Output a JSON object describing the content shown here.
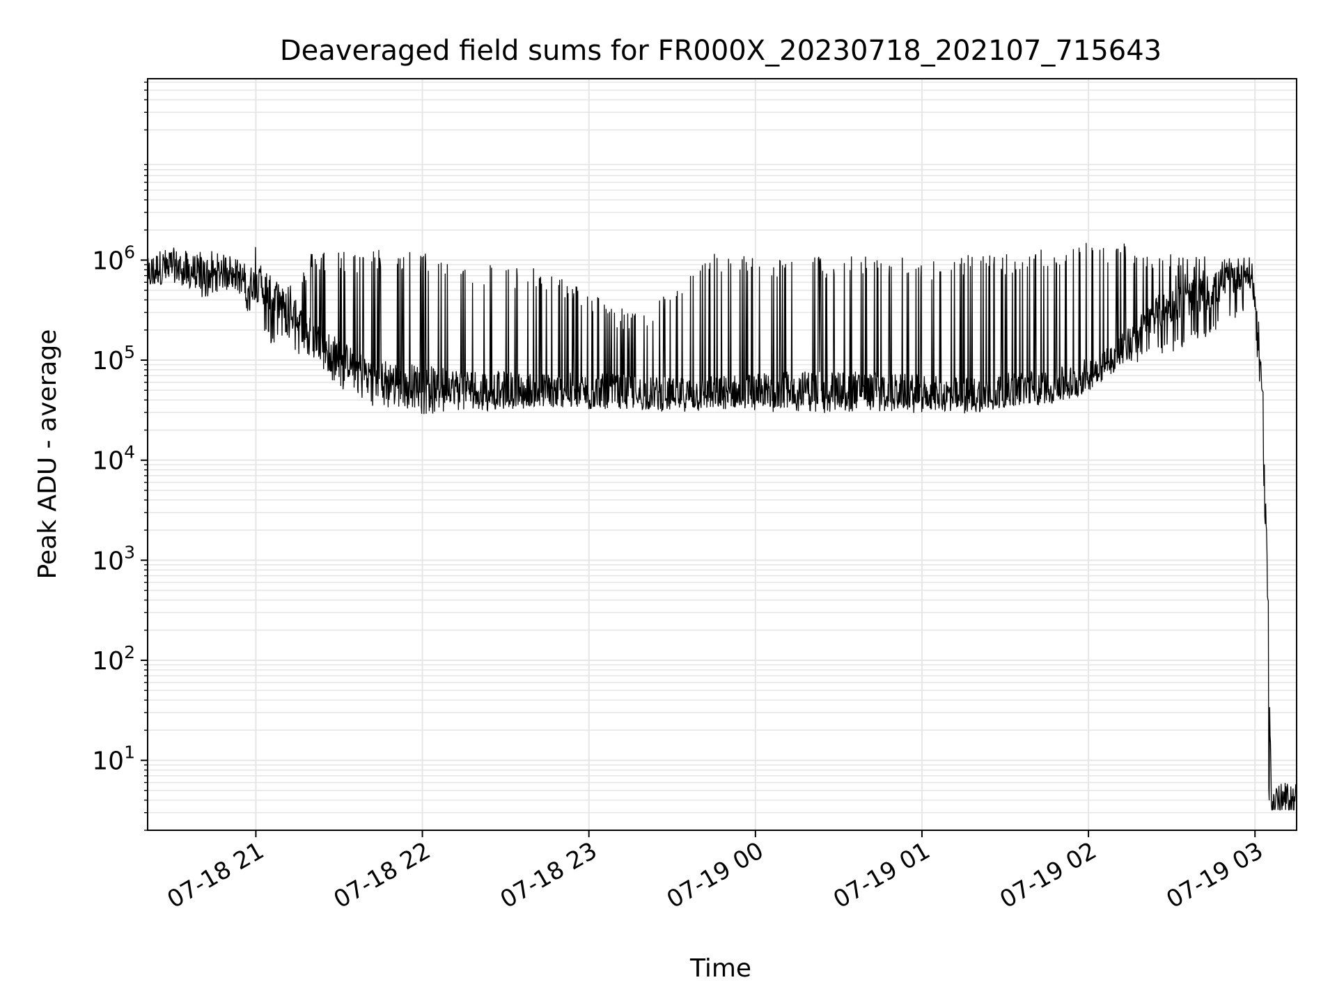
{
  "chart_data": {
    "type": "line",
    "title": "Deaveraged field sums for FR000X_20230718_202107_715643",
    "xlabel": "Time",
    "ylabel": "Peak ADU - average",
    "yscale": "log",
    "ylim": [
      2,
      65000000
    ],
    "xlim": [
      "2023-07-18 20:21",
      "2023-07-19 03:15"
    ],
    "grid": true,
    "grid_minor": true,
    "line_color": "#000000",
    "grid_color": "#e6e6e6",
    "xticks": [
      {
        "t": "2023-07-18 21:00",
        "label": "07-18 21"
      },
      {
        "t": "2023-07-18 22:00",
        "label": "07-18 22"
      },
      {
        "t": "2023-07-18 23:00",
        "label": "07-18 23"
      },
      {
        "t": "2023-07-19 00:00",
        "label": "07-19 00"
      },
      {
        "t": "2023-07-19 01:00",
        "label": "07-19 01"
      },
      {
        "t": "2023-07-19 02:00",
        "label": "07-19 02"
      },
      {
        "t": "2023-07-19 03:00",
        "label": "07-19 03"
      }
    ],
    "yticks": [
      {
        "value": 10,
        "base": "10",
        "exp": "1"
      },
      {
        "value": 100,
        "base": "10",
        "exp": "2"
      },
      {
        "value": 1000,
        "base": "10",
        "exp": "3"
      },
      {
        "value": 10000,
        "base": "10",
        "exp": "4"
      },
      {
        "value": 100000,
        "base": "10",
        "exp": "5"
      },
      {
        "value": 1000000,
        "base": "10",
        "exp": "6"
      }
    ],
    "series": [
      {
        "values_description_note": "",
        "x": [
          "2023-07-18 20:21",
          "2023-07-18 20:25",
          "2023-07-18 20:30",
          "2023-07-18 20:35",
          "2023-07-18 20:40",
          "2023-07-18 20:45",
          "2023-07-18 20:50",
          "2023-07-18 20:55",
          "2023-07-18 20:58",
          "2023-07-18 21:02",
          "2023-07-18 21:06",
          "2023-07-18 21:10",
          "2023-07-18 21:15",
          "2023-07-18 21:20",
          "2023-07-18 21:25",
          "2023-07-18 21:30",
          "2023-07-18 21:35",
          "2023-07-18 21:40",
          "2023-07-18 21:50",
          "2023-07-18 22:00",
          "2023-07-18 22:15",
          "2023-07-18 22:30",
          "2023-07-18 22:45",
          "2023-07-18 23:00",
          "2023-07-18 23:15",
          "2023-07-18 23:30",
          "2023-07-18 23:45",
          "2023-07-19 00:00",
          "2023-07-19 00:15",
          "2023-07-19 00:30",
          "2023-07-19 00:45",
          "2023-07-19 01:00",
          "2023-07-19 01:10",
          "2023-07-19 01:20",
          "2023-07-19 01:30",
          "2023-07-19 01:45",
          "2023-07-19 01:55",
          "2023-07-19 02:05",
          "2023-07-19 02:15",
          "2023-07-19 02:25",
          "2023-07-19 02:35",
          "2023-07-19 02:45",
          "2023-07-19 02:55",
          "2023-07-19 02:59",
          "2023-07-19 03:01",
          "2023-07-19 03:02",
          "2023-07-19 03:03",
          "2023-07-19 03:04",
          "2023-07-19 03:05",
          "2023-07-19 03:06",
          "2023-07-19 03:07",
          "2023-07-19 03:15"
        ],
        "y": [
          700000,
          850000,
          900000,
          800000,
          750000,
          700000,
          800000,
          650000,
          600000,
          550000,
          450000,
          350000,
          250000,
          180000,
          140000,
          110000,
          90000,
          75000,
          65000,
          60000,
          55000,
          52000,
          50000,
          50000,
          48000,
          45000,
          47000,
          50000,
          52000,
          55000,
          50000,
          48000,
          45000,
          46000,
          50000,
          55000,
          60000,
          90000,
          150000,
          300000,
          400000,
          500000,
          750000,
          700000,
          200000,
          100000,
          30000,
          3000,
          80,
          4,
          4,
          4
        ],
        "noise_high": [
          1300000,
          1300000,
          1200000,
          1300000,
          1400000,
          1200000,
          1100000,
          1300000,
          3300000,
          900000,
          800000,
          700000,
          600000,
          1200000,
          1300000,
          1300000,
          1200000,
          1300000,
          1300000,
          1200000,
          1000000,
          900000,
          800000,
          500000,
          300000,
          500000,
          1200000,
          1100000,
          1100000,
          1100000,
          1150000,
          1000000,
          1100000,
          1150000,
          1200000,
          1300000,
          1500000,
          1600000,
          1500000,
          1300000,
          1100000,
          1100000,
          1000000,
          900000,
          200000,
          100000,
          30000,
          3000,
          300,
          4,
          4,
          4
        ],
        "noise_low": [
          550000,
          600000,
          650000,
          600000,
          450000,
          500000,
          550000,
          450000,
          300000,
          200000,
          150000,
          180000,
          130000,
          100000,
          80000,
          60000,
          45000,
          40000,
          35000,
          32000,
          33000,
          35000,
          35000,
          35000,
          35000,
          35000,
          33000,
          33000,
          33000,
          32000,
          33000,
          33000,
          32000,
          32000,
          35000,
          40000,
          45000,
          80000,
          100000,
          120000,
          150000,
          200000,
          300000,
          600000,
          100000,
          50000,
          10000,
          1000,
          4,
          4,
          4,
          4
        ]
      }
    ]
  }
}
